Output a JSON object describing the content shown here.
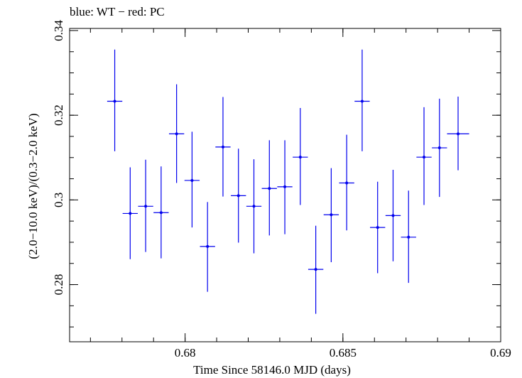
{
  "chart_data": {
    "type": "scatter",
    "title": "blue: WT − red: PC",
    "xlabel": "Time Since 58146.0 MJD (days)",
    "ylabel": "(2.0−10.0 keV)/(0.3−2.0 keV)",
    "xlim": [
      0.67634,
      0.69
    ],
    "ylim": [
      0.2665,
      0.3405
    ],
    "xticks": [
      {
        "value": 0.68,
        "label": "0.68"
      },
      {
        "value": 0.685,
        "label": "0.685"
      },
      {
        "value": 0.69,
        "label": "0.69"
      }
    ],
    "yticks": [
      {
        "value": 0.28,
        "label": "0.28"
      },
      {
        "value": 0.3,
        "label": "0.3"
      },
      {
        "value": 0.32,
        "label": "0.32"
      },
      {
        "value": 0.34,
        "label": "0.34"
      }
    ],
    "x_minor_step": 0.001,
    "y_minor_step": 0.005,
    "series": [
      {
        "name": "WT",
        "color": "#0000ee",
        "points": [
          {
            "x": 0.67777,
            "y": 0.3233,
            "xerr": 0.00024,
            "yerr_lo": 0.0118,
            "yerr_hi": 0.0122
          },
          {
            "x": 0.67826,
            "y": 0.2968,
            "xerr": 0.00024,
            "yerr_lo": 0.0108,
            "yerr_hi": 0.0109
          },
          {
            "x": 0.67875,
            "y": 0.2985,
            "xerr": 0.00024,
            "yerr_lo": 0.0108,
            "yerr_hi": 0.011
          },
          {
            "x": 0.67924,
            "y": 0.297,
            "xerr": 0.00024,
            "yerr_lo": 0.0108,
            "yerr_hi": 0.0109
          },
          {
            "x": 0.67973,
            "y": 0.3156,
            "xerr": 0.00024,
            "yerr_lo": 0.0116,
            "yerr_hi": 0.0117
          },
          {
            "x": 0.68022,
            "y": 0.3046,
            "xerr": 0.00024,
            "yerr_lo": 0.0111,
            "yerr_hi": 0.0115
          },
          {
            "x": 0.68071,
            "y": 0.289,
            "xerr": 0.00024,
            "yerr_lo": 0.0107,
            "yerr_hi": 0.0105
          },
          {
            "x": 0.6812,
            "y": 0.3125,
            "xerr": 0.00024,
            "yerr_lo": 0.0117,
            "yerr_hi": 0.0118
          },
          {
            "x": 0.68169,
            "y": 0.301,
            "xerr": 0.00024,
            "yerr_lo": 0.0111,
            "yerr_hi": 0.0111
          },
          {
            "x": 0.68218,
            "y": 0.2985,
            "xerr": 0.00024,
            "yerr_lo": 0.0111,
            "yerr_hi": 0.0111
          },
          {
            "x": 0.68267,
            "y": 0.3027,
            "xerr": 0.00024,
            "yerr_lo": 0.0111,
            "yerr_hi": 0.0114
          },
          {
            "x": 0.68316,
            "y": 0.3031,
            "xerr": 0.00024,
            "yerr_lo": 0.0112,
            "yerr_hi": 0.011
          },
          {
            "x": 0.68365,
            "y": 0.3101,
            "xerr": 0.00024,
            "yerr_lo": 0.0113,
            "yerr_hi": 0.0116
          },
          {
            "x": 0.68414,
            "y": 0.2836,
            "xerr": 0.00024,
            "yerr_lo": 0.0105,
            "yerr_hi": 0.0103
          },
          {
            "x": 0.68463,
            "y": 0.2965,
            "xerr": 0.00024,
            "yerr_lo": 0.0112,
            "yerr_hi": 0.011
          },
          {
            "x": 0.68512,
            "y": 0.304,
            "xerr": 0.00024,
            "yerr_lo": 0.0112,
            "yerr_hi": 0.0114
          },
          {
            "x": 0.68561,
            "y": 0.3233,
            "xerr": 0.00024,
            "yerr_lo": 0.0118,
            "yerr_hi": 0.0122
          },
          {
            "x": 0.6861,
            "y": 0.2935,
            "xerr": 0.00024,
            "yerr_lo": 0.0108,
            "yerr_hi": 0.0108
          },
          {
            "x": 0.68659,
            "y": 0.2963,
            "xerr": 0.00024,
            "yerr_lo": 0.0108,
            "yerr_hi": 0.0108
          },
          {
            "x": 0.68708,
            "y": 0.2912,
            "xerr": 0.00024,
            "yerr_lo": 0.0108,
            "yerr_hi": 0.011
          },
          {
            "x": 0.68757,
            "y": 0.3101,
            "xerr": 0.00024,
            "yerr_lo": 0.0113,
            "yerr_hi": 0.0118
          },
          {
            "x": 0.68806,
            "y": 0.3123,
            "xerr": 0.00024,
            "yerr_lo": 0.0116,
            "yerr_hi": 0.0116
          },
          {
            "x": 0.68865,
            "y": 0.3156,
            "xerr": 0.00035,
            "yerr_lo": 0.0086,
            "yerr_hi": 0.0088
          }
        ]
      }
    ]
  }
}
